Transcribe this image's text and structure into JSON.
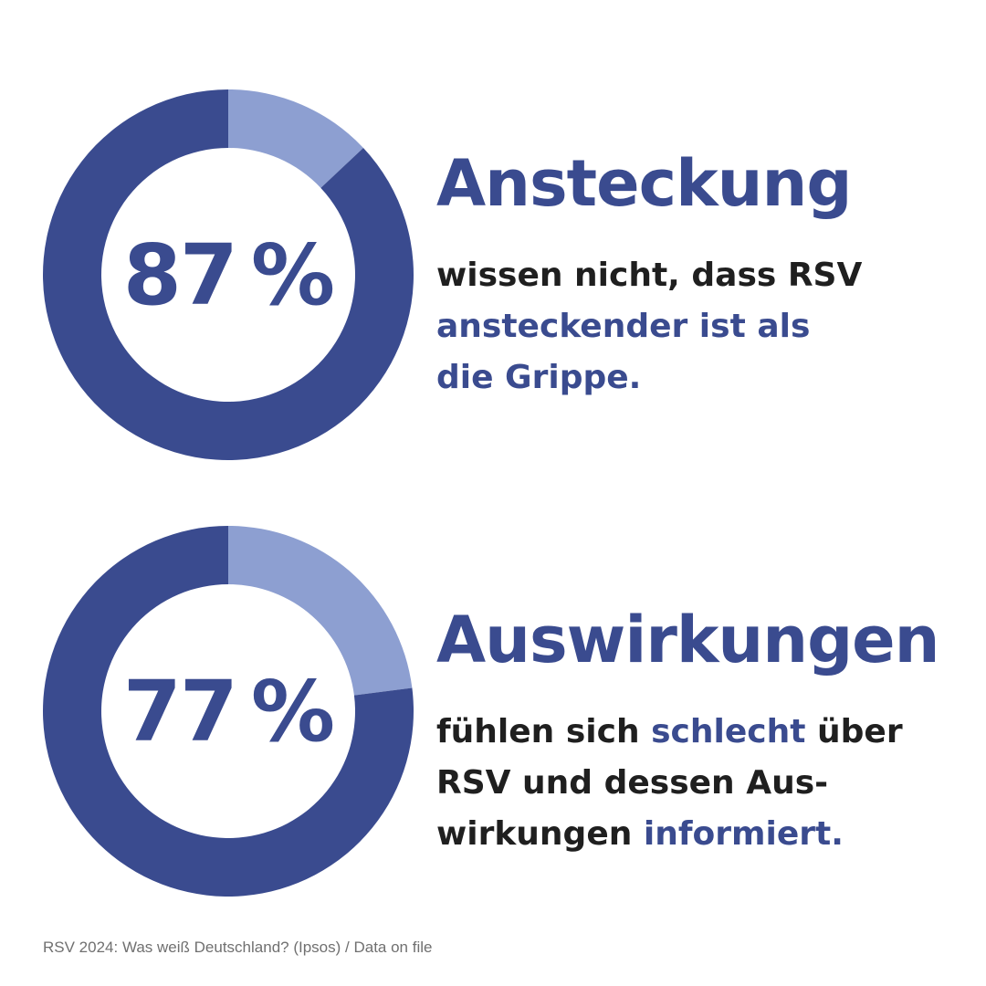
{
  "colors": {
    "primary": "#3a4b8f",
    "secondary": "#8d9fd1",
    "text_dark": "#1f1f1f",
    "source_gray": "#707070"
  },
  "chart_data": [
    {
      "type": "pie",
      "style": "donut",
      "value_percent": 87,
      "remainder_percent": 13,
      "value_label": "87",
      "percent_sign": "%",
      "title": "Ansteckung",
      "text": {
        "line1": "wissen nicht, dass RSV",
        "line2": "ansteckender ist als",
        "line3": "die Grippe."
      }
    },
    {
      "type": "pie",
      "style": "donut",
      "value_percent": 77,
      "remainder_percent": 23,
      "value_label": "77",
      "percent_sign": "%",
      "title": "Auswirkungen",
      "text": {
        "l1_a": "fühlen sich",
        "l1_b": "schlecht",
        "l1_c": "über",
        "line2": "RSV und dessen Aus-",
        "l3_a": "wirkungen",
        "l3_b": "informiert."
      }
    }
  ],
  "source": "RSV 2024: Was weiß Deutschland? (Ipsos) / Data on file"
}
